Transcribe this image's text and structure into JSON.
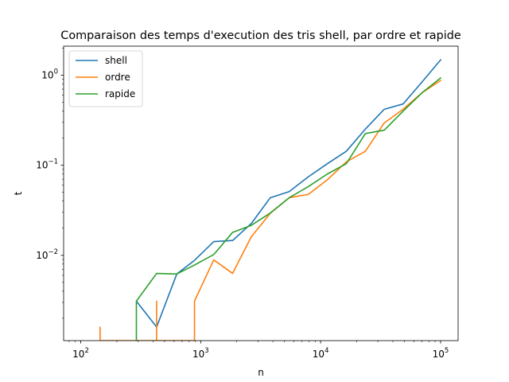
{
  "chart_data": {
    "type": "line",
    "title": "Comparaison des temps d'execution des tris shell, par ordre et rapide",
    "xlabel": "n",
    "ylabel": "t",
    "xscale": "log",
    "yscale": "log",
    "xlim": [
      72,
      140000
    ],
    "ylim": [
      0.00113,
      2.1
    ],
    "grid": false,
    "legend_placement": "top-left",
    "x_ticks": [
      {
        "value": 100,
        "base": "10",
        "exp": "2"
      },
      {
        "value": 1000,
        "base": "10",
        "exp": "3"
      },
      {
        "value": 10000,
        "base": "10",
        "exp": "4"
      },
      {
        "value": 100000,
        "base": "10",
        "exp": "5"
      }
    ],
    "y_ticks": [
      {
        "value": 0.01,
        "base": "10",
        "exp": "−2"
      },
      {
        "value": 0.1,
        "base": "10",
        "exp": "−1"
      },
      {
        "value": 1,
        "base": "10",
        "exp": "0"
      }
    ],
    "series": [
      {
        "name": "shell",
        "color": "#1f77b4",
        "x": [
          291,
          429,
          632,
          888,
          1285,
          1846,
          2637,
          3804,
          5470,
          7900,
          11382,
          16371,
          23600,
          33900,
          48800,
          70300,
          101000
        ],
        "y": [
          0.0031,
          0.0016,
          0.0062,
          0.0088,
          0.0142,
          0.0146,
          0.0225,
          0.0436,
          0.051,
          0.0745,
          0.104,
          0.143,
          0.252,
          0.418,
          0.48,
          0.845,
          1.5
        ]
      },
      {
        "name": "ordre",
        "color": "#ff7f0e",
        "x": [
          145,
          145,
          145,
          429,
          429,
          429,
          888,
          888,
          888,
          1285,
          1846,
          2637,
          3804,
          5470,
          7900,
          11382,
          16371,
          23600,
          33900,
          48800,
          70300,
          101000
        ],
        "y": [
          0.00113,
          0.0016,
          0.00113,
          0.00113,
          0.0031,
          0.00113,
          0.00113,
          0.0031,
          0.0031,
          0.0089,
          0.0063,
          0.016,
          0.0293,
          0.0436,
          0.0475,
          0.069,
          0.109,
          0.143,
          0.295,
          0.42,
          0.64,
          0.88
        ]
      },
      {
        "name": "rapide",
        "color": "#2ca02c",
        "x": [
          291,
          291,
          429,
          632,
          888,
          1285,
          1846,
          2637,
          3804,
          5470,
          7900,
          11382,
          16371,
          23600,
          33900,
          48800,
          70300,
          101000
        ],
        "y": [
          0.00113,
          0.0031,
          0.0063,
          0.0062,
          0.0078,
          0.0102,
          0.018,
          0.0215,
          0.0295,
          0.0436,
          0.058,
          0.08,
          0.104,
          0.225,
          0.245,
          0.4,
          0.64,
          0.94
        ]
      }
    ]
  }
}
